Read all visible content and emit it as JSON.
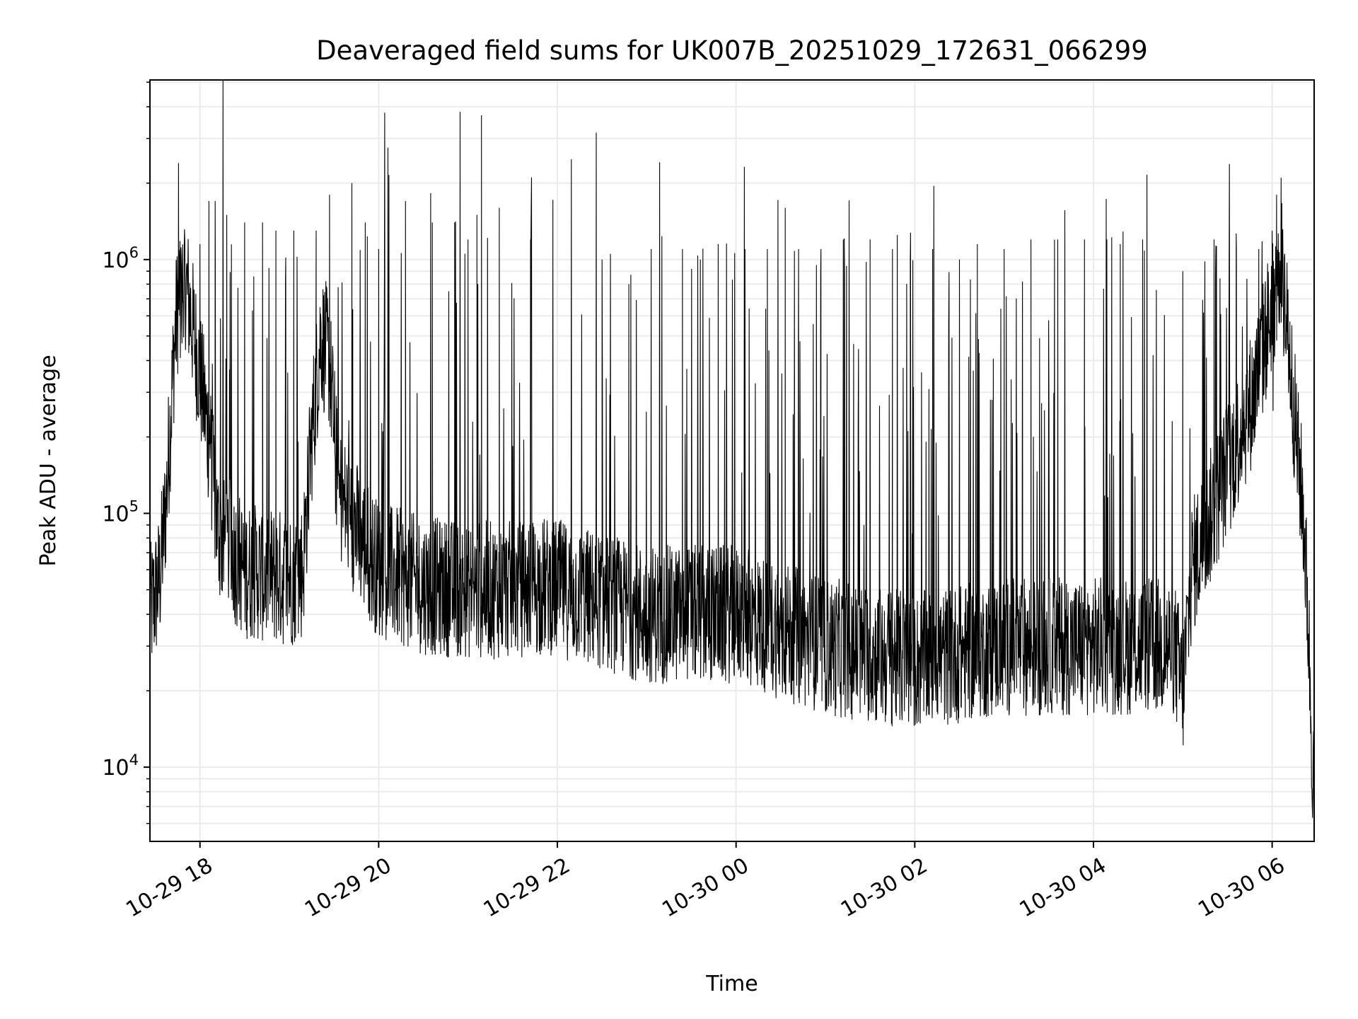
{
  "chart_data": {
    "type": "line",
    "title": "Deaveraged field sums for UK007B_20251029_172631_066299",
    "xlabel": "Time",
    "ylabel": "Peak ADU - average",
    "x_units": "hours since 10-29 00:00",
    "xlim": [
      17.44,
      30.47
    ],
    "ylim": [
      5100,
      5100000
    ],
    "yscale": "log",
    "grid": true,
    "line_color": "#000000",
    "grid_color": "#ebebeb",
    "x_ticks": [
      {
        "value": 18,
        "label": "10-29 18"
      },
      {
        "value": 20,
        "label": "10-29 20"
      },
      {
        "value": 22,
        "label": "10-29 22"
      },
      {
        "value": 24,
        "label": "10-30 00"
      },
      {
        "value": 26,
        "label": "10-30 02"
      },
      {
        "value": 28,
        "label": "10-30 04"
      },
      {
        "value": 30,
        "label": "10-30 06"
      }
    ],
    "y_ticks": [
      {
        "value": 10000,
        "base": "10",
        "exp": "4"
      },
      {
        "value": 100000,
        "base": "10",
        "exp": "5"
      },
      {
        "value": 1000000,
        "base": "10",
        "exp": "6"
      }
    ],
    "baseline": [
      [
        17.44,
        40000
      ],
      [
        17.55,
        55000
      ],
      [
        17.62,
        110000
      ],
      [
        17.72,
        500000
      ],
      [
        17.8,
        1000000
      ],
      [
        17.9,
        600000
      ],
      [
        18.0,
        350000
      ],
      [
        18.1,
        200000
      ],
      [
        18.2,
        85000
      ],
      [
        18.5,
        60000
      ],
      [
        19.0,
        55000
      ],
      [
        19.15,
        60000
      ],
      [
        19.25,
        200000
      ],
      [
        19.35,
        500000
      ],
      [
        19.45,
        400000
      ],
      [
        19.55,
        120000
      ],
      [
        19.8,
        80000
      ],
      [
        20.0,
        60000
      ],
      [
        20.5,
        52000
      ],
      [
        21.0,
        50000
      ],
      [
        21.5,
        50000
      ],
      [
        21.9,
        52000
      ],
      [
        22.5,
        45000
      ],
      [
        23.0,
        40000
      ],
      [
        24.0,
        40000
      ],
      [
        25.0,
        30000
      ],
      [
        26.0,
        26000
      ],
      [
        27.0,
        30000
      ],
      [
        28.0,
        30000
      ],
      [
        28.9,
        30000
      ],
      [
        29.0,
        20000
      ],
      [
        29.1,
        60000
      ],
      [
        29.5,
        150000
      ],
      [
        29.8,
        300000
      ],
      [
        30.1,
        1000000
      ],
      [
        30.2,
        400000
      ],
      [
        30.27,
        200000
      ],
      [
        30.35,
        100000
      ],
      [
        30.4,
        40000
      ],
      [
        30.47,
        7000
      ]
    ],
    "spikes": [
      [
        17.76,
        2400000
      ],
      [
        18.0,
        1150000
      ],
      [
        18.1,
        1700000
      ],
      [
        18.17,
        1700000
      ],
      [
        18.3,
        1500000
      ],
      [
        18.5,
        1400000
      ],
      [
        18.7,
        1400000
      ],
      [
        18.85,
        1300000
      ],
      [
        19.05,
        1300000
      ],
      [
        19.3,
        1300000
      ],
      [
        19.45,
        1800000
      ],
      [
        19.7,
        2000000
      ],
      [
        19.85,
        1400000
      ],
      [
        20.0,
        1100000
      ],
      [
        20.3,
        1700000
      ],
      [
        20.6,
        1400000
      ],
      [
        20.85,
        1400000
      ],
      [
        21.0,
        1200000
      ],
      [
        21.1,
        1500000
      ],
      [
        21.15,
        3700000
      ],
      [
        21.35,
        1600000
      ],
      [
        21.7,
        1200000
      ],
      [
        21.95,
        1000000
      ],
      [
        22.5,
        1000000
      ],
      [
        22.8,
        800000
      ],
      [
        23.05,
        1100000
      ],
      [
        23.4,
        1100000
      ],
      [
        23.6,
        1000000
      ],
      [
        23.8,
        1150000
      ],
      [
        24.1,
        1100000
      ],
      [
        24.35,
        1100000
      ],
      [
        24.55,
        1600000
      ],
      [
        24.7,
        1100000
      ],
      [
        24.95,
        1100000
      ],
      [
        25.2,
        1200000
      ],
      [
        25.5,
        1200000
      ],
      [
        25.75,
        1100000
      ],
      [
        25.95,
        1000000
      ],
      [
        26.2,
        1100000
      ],
      [
        26.5,
        1000000
      ],
      [
        26.7,
        1150000
      ],
      [
        27.0,
        1100000
      ],
      [
        27.3,
        1200000
      ],
      [
        27.6,
        1200000
      ],
      [
        27.9,
        1200000
      ],
      [
        28.15,
        1200000
      ],
      [
        28.3,
        1150000
      ],
      [
        28.55,
        1200000
      ],
      [
        29.0,
        900000
      ],
      [
        29.35,
        1200000
      ],
      [
        29.6,
        1100000
      ],
      [
        29.85,
        1100000
      ],
      [
        30.0,
        1300000
      ],
      [
        30.05,
        1800000
      ],
      [
        30.1,
        2100000
      ]
    ]
  }
}
